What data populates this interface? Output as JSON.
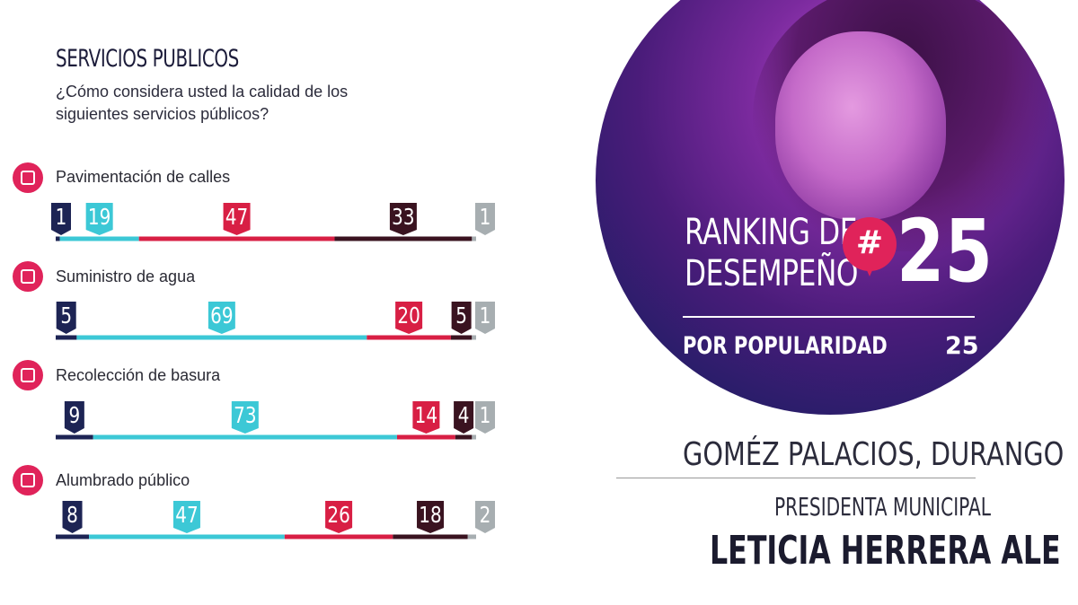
{
  "left_panel": {
    "title": "SERVICIOS PUBLICOS",
    "question": "¿Cómo considera usted la calidad de los siguientes servicios públicos?"
  },
  "chart_data": {
    "type": "bar",
    "orientation": "stacked-horizontal",
    "categories": [
      "Pavimentación de calles",
      "Suministro de agua",
      "Recolección de basura",
      "Alumbrado público"
    ],
    "series": [
      {
        "values": [
          1,
          5,
          9,
          8
        ],
        "color": "#1d2454"
      },
      {
        "values": [
          19,
          69,
          73,
          47
        ],
        "color": "#3cc8d6"
      },
      {
        "values": [
          47,
          20,
          14,
          26
        ],
        "color": "#d81f44"
      },
      {
        "values": [
          33,
          5,
          4,
          18
        ],
        "color": "#3a1320"
      },
      {
        "values": [
          1,
          1,
          1,
          2
        ],
        "color": "#a7aeb1"
      }
    ],
    "category_icons": [
      "trash-can-icon",
      "water-tap-icon",
      "garbage-truck-icon",
      "street-lamp-icon"
    ]
  },
  "ranking": {
    "line1": "RANKING DE",
    "line2": "DESEMPEÑO",
    "badge": "#",
    "number": "25",
    "popularity_label": "POR POPULARIDAD",
    "popularity_value": "25"
  },
  "location": "GOMÉZ PALACIOS, DURANGO",
  "role": "PRESIDENTA MUNICIPAL",
  "name": "LETICIA HERRERA ALE",
  "colors": {
    "accent": "#e0235a",
    "navy": "#1d2454",
    "cyan": "#3cc8d6",
    "red": "#d81f44",
    "maroon": "#3a1320",
    "gray": "#a7aeb1"
  }
}
